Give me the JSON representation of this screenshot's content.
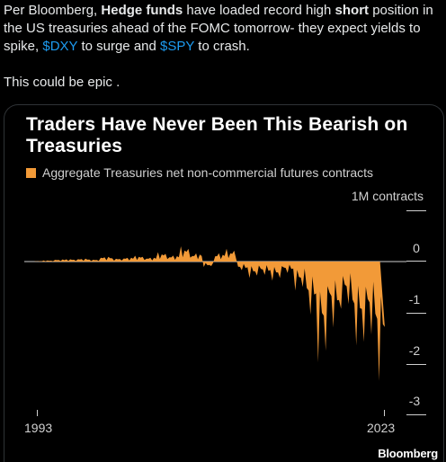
{
  "tweet": {
    "p1_a": "Per Bloomberg, ",
    "p1_b": "Hedge funds",
    "p1_c": " have loaded record high ",
    "p1_d": "short",
    "p1_e": " position in the US treasuries ahead of the FOMC tomorrow- they expect yields to spike, ",
    "cash1": "$DXY",
    "p1_f": " to surge and ",
    "cash2": "$SPY",
    "p1_g": " to crash.",
    "p2": "This could be epic ."
  },
  "chart": {
    "title": "Traders Have Never Been This Bearish on Treasuries",
    "legend": "Aggregate Treasuries net non-commercial futures contracts",
    "unit_label": "1M contracts",
    "brand": "Bloomberg",
    "bar_color": "#f29a38"
  },
  "chart_data": {
    "type": "area",
    "title": "Traders Have Never Been This Bearish on Treasuries",
    "legend": [
      "Aggregate Treasuries net non-commercial futures contracts"
    ],
    "y_unit": "1M contracts",
    "yticks": [
      "0",
      "-1",
      "-2",
      "-3"
    ],
    "xticks": [
      "1993",
      "2023"
    ],
    "ylim": [
      -3.3,
      0.6
    ],
    "xlim": [
      1993,
      2023.5
    ],
    "series": [
      {
        "x": [
          1993,
          1994,
          1995,
          1996,
          1997,
          1998,
          1999,
          2000,
          2001,
          2002,
          2003,
          2004,
          2005,
          2006,
          2007,
          2008,
          2009,
          2010,
          2011,
          2012,
          2013,
          2014,
          2015,
          2016,
          2017,
          2018,
          2019,
          2020,
          2021,
          2022,
          2023
        ],
        "values": [
          0.01,
          0.03,
          0.05,
          0.06,
          0.07,
          0.05,
          0.12,
          0.08,
          0.1,
          0.14,
          0.1,
          0.22,
          0.15,
          0.35,
          0.2,
          -0.12,
          0.2,
          0.28,
          -0.2,
          -0.35,
          -0.3,
          -0.4,
          -0.25,
          -0.6,
          -1.15,
          -2.05,
          -1.4,
          -0.95,
          -1.75,
          -1.6,
          -2.45
        ]
      }
    ]
  }
}
